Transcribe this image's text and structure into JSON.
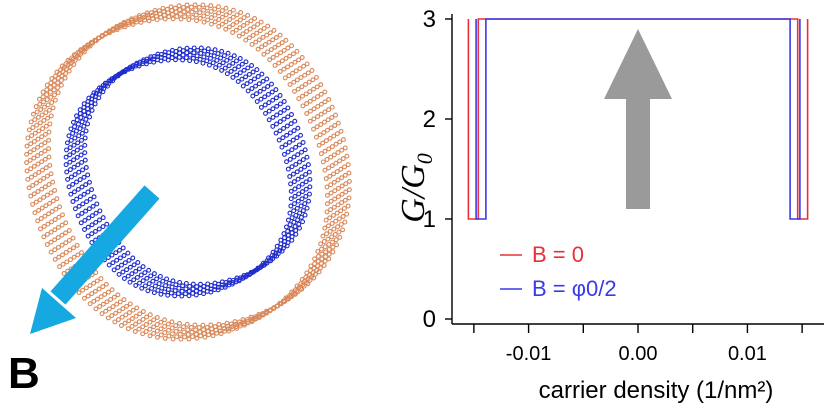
{
  "illustration": {
    "field_label": "B",
    "outer_color": "#d9895a",
    "inner_color": "#1f2ccc",
    "arrow_color": "#16a8e0"
  },
  "chart_data": {
    "type": "line",
    "xlabel": "carrier density (1/nm²)",
    "ylabel_main": "G",
    "ylabel_sub": "0",
    "xlim": [
      -0.017,
      0.017
    ],
    "ylim": [
      -0.05,
      3.05
    ],
    "xticks": [
      -0.01,
      0.0,
      0.01
    ],
    "xtick_labels": [
      "-0.01",
      "0.00",
      "0.01"
    ],
    "xticks_minor": [
      -0.015,
      -0.005,
      0.005,
      0.015
    ],
    "yticks": [
      0,
      1,
      2,
      3
    ],
    "ytick_labels": [
      "0",
      "1",
      "2",
      "3"
    ],
    "legend_position": "bottom-left",
    "series": [
      {
        "name": "B = 0",
        "color": "#e8303a",
        "x": [
          -0.0155,
          -0.0155,
          -0.0146,
          -0.0146,
          0.0146,
          0.0146,
          0.0155,
          0.0155
        ],
        "y": [
          3,
          1,
          1,
          3,
          3,
          1,
          1,
          3
        ]
      },
      {
        "name": "B = φ0/2",
        "color": "#3a3ae8",
        "x": [
          -0.0148,
          -0.0148,
          -0.0139,
          -0.0139,
          0.0139,
          0.0139,
          0.0148,
          0.0148
        ],
        "y": [
          3,
          1,
          1,
          3,
          3,
          1,
          1,
          3
        ]
      }
    ],
    "arrow_color": "#9a9a9a"
  }
}
